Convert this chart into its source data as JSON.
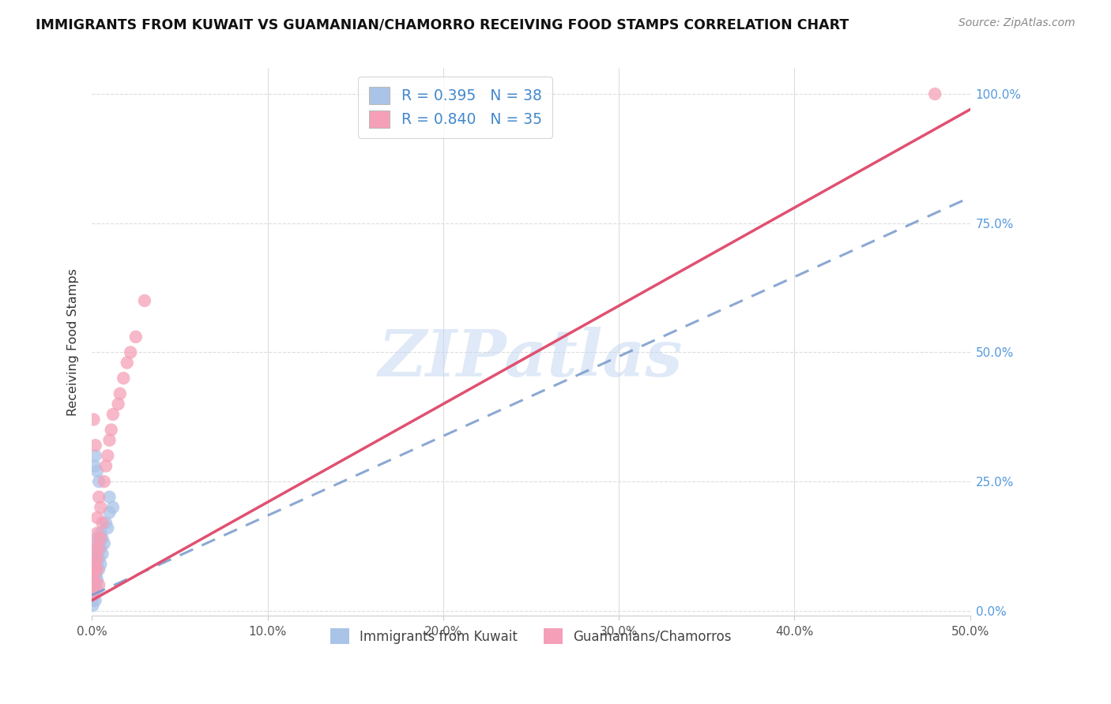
{
  "title": "IMMIGRANTS FROM KUWAIT VS GUAMANIAN/CHAMORRO RECEIVING FOOD STAMPS CORRELATION CHART",
  "source": "Source: ZipAtlas.com",
  "ylabel": "Receiving Food Stamps",
  "series1_label": "Immigrants from Kuwait",
  "series2_label": "Guamanians/Chamorros",
  "series1_color": "#aac4e8",
  "series2_color": "#f5a0b8",
  "series1_line_color": "#7799cc",
  "series2_line_color": "#e05070",
  "series1_R": 0.395,
  "series1_N": 38,
  "series2_R": 0.84,
  "series2_N": 35,
  "xlim": [
    0.0,
    0.5
  ],
  "ylim": [
    -0.01,
    1.05
  ],
  "xticks": [
    0.0,
    0.1,
    0.2,
    0.3,
    0.4,
    0.5
  ],
  "yticks": [
    0.0,
    0.25,
    0.5,
    0.75,
    1.0
  ],
  "ytick_labels_right": [
    "0.0%",
    "25.0%",
    "50.0%",
    "75.0%",
    "100.0%"
  ],
  "xtick_labels": [
    "0.0%",
    "10.0%",
    "20.0%",
    "30.0%",
    "40.0%",
    "50.0%"
  ],
  "watermark": "ZIPatlas",
  "background_color": "#ffffff",
  "grid_color": "#dddddd",
  "line1_x0": 0.0,
  "line1_y0": 0.03,
  "line1_x1": 0.5,
  "line1_y1": 0.8,
  "line2_x0": 0.0,
  "line2_y0": 0.02,
  "line2_x1": 0.5,
  "line2_y1": 0.97,
  "series1_x": [
    0.0005,
    0.0008,
    0.001,
    0.001,
    0.0012,
    0.0015,
    0.0015,
    0.002,
    0.002,
    0.002,
    0.002,
    0.0025,
    0.003,
    0.003,
    0.003,
    0.003,
    0.004,
    0.004,
    0.004,
    0.005,
    0.005,
    0.005,
    0.006,
    0.006,
    0.007,
    0.008,
    0.009,
    0.01,
    0.01,
    0.012,
    0.0005,
    0.001,
    0.002,
    0.003,
    0.0015,
    0.002,
    0.003,
    0.004
  ],
  "series1_y": [
    0.02,
    0.03,
    0.04,
    0.06,
    0.05,
    0.07,
    0.09,
    0.05,
    0.08,
    0.1,
    0.12,
    0.07,
    0.06,
    0.09,
    0.11,
    0.14,
    0.08,
    0.1,
    0.13,
    0.09,
    0.12,
    0.15,
    0.11,
    0.14,
    0.13,
    0.17,
    0.16,
    0.19,
    0.22,
    0.2,
    0.01,
    0.03,
    0.02,
    0.04,
    0.28,
    0.3,
    0.27,
    0.25
  ],
  "series2_x": [
    0.0005,
    0.0008,
    0.001,
    0.001,
    0.0012,
    0.0015,
    0.002,
    0.002,
    0.002,
    0.003,
    0.003,
    0.003,
    0.004,
    0.004,
    0.005,
    0.005,
    0.006,
    0.007,
    0.008,
    0.009,
    0.01,
    0.011,
    0.012,
    0.015,
    0.016,
    0.018,
    0.02,
    0.022,
    0.025,
    0.03,
    0.001,
    0.002,
    0.003,
    0.004,
    0.48
  ],
  "series2_y": [
    0.03,
    0.05,
    0.04,
    0.07,
    0.06,
    0.09,
    0.08,
    0.11,
    0.13,
    0.1,
    0.15,
    0.18,
    0.12,
    0.22,
    0.14,
    0.2,
    0.17,
    0.25,
    0.28,
    0.3,
    0.33,
    0.35,
    0.38,
    0.4,
    0.42,
    0.45,
    0.48,
    0.5,
    0.53,
    0.6,
    0.37,
    0.32,
    0.08,
    0.05,
    1.0
  ]
}
